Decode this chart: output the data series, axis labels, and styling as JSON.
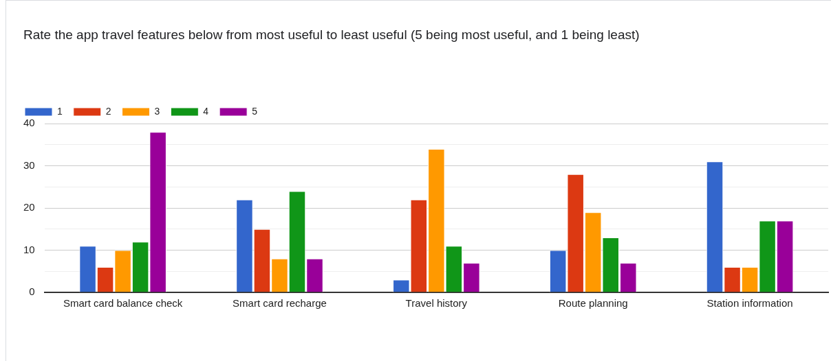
{
  "chart_data": {
    "type": "bar",
    "title": "Rate the app travel features below from most useful to least useful (5 being most useful, and 1 being least)",
    "categories": [
      "Smart card balance check",
      "Smart card recharge",
      "Travel history",
      "Route planning",
      "Station information"
    ],
    "series": [
      {
        "name": "1",
        "color": "#3366cc",
        "values": [
          11,
          22,
          3,
          10,
          31
        ]
      },
      {
        "name": "2",
        "color": "#dc3912",
        "values": [
          6,
          15,
          22,
          28,
          6
        ]
      },
      {
        "name": "3",
        "color": "#ff9900",
        "values": [
          10,
          8,
          34,
          19,
          6
        ]
      },
      {
        "name": "4",
        "color": "#109618",
        "values": [
          12,
          24,
          11,
          13,
          17
        ]
      },
      {
        "name": "5",
        "color": "#990099",
        "values": [
          38,
          8,
          7,
          7,
          17
        ]
      }
    ],
    "ylim": [
      0,
      40
    ],
    "yticks": [
      0,
      {
        "value": 5,
        "label": null
      },
      10,
      {
        "value": 15,
        "label": null
      },
      20,
      {
        "value": 25,
        "label": null
      },
      30,
      {
        "value": 35,
        "label": null
      },
      40
    ],
    "grid": "y",
    "legend": "top left"
  }
}
